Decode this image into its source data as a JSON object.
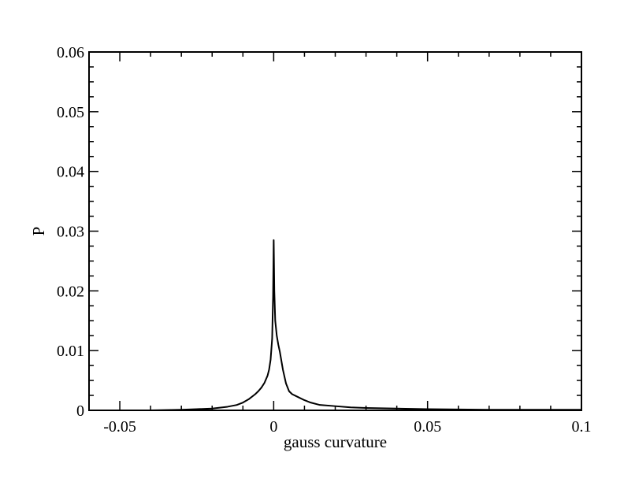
{
  "chart_data": {
    "type": "line",
    "title": "",
    "xlabel": "gauss curvature",
    "ylabel": "P",
    "xlim": [
      -0.06,
      0.1
    ],
    "ylim": [
      0,
      0.06
    ],
    "x_ticks": [
      -0.05,
      0,
      0.05,
      0.1
    ],
    "x_tick_labels": [
      "-0.05",
      "0",
      "0.05",
      "0.1"
    ],
    "y_ticks": [
      0,
      0.01,
      0.02,
      0.03,
      0.04,
      0.05,
      0.06
    ],
    "y_tick_labels": [
      "0",
      "0.01",
      "0.02",
      "0.03",
      "0.04",
      "0.05",
      "0.06"
    ],
    "grid": false,
    "legend": "none",
    "line_color": "#000000",
    "series": [
      {
        "x": [
          -0.04,
          -0.03,
          -0.025,
          -0.02,
          -0.015,
          -0.012,
          -0.01,
          -0.008,
          -0.006,
          -0.005,
          -0.004,
          -0.003,
          -0.002,
          -0.0015,
          -0.001,
          -0.0005,
          -0.0002,
          0,
          0.0002,
          0.0005,
          0.001,
          0.0015,
          0.002,
          0.003,
          0.004,
          0.005,
          0.006,
          0.008,
          0.01,
          0.012,
          0.015,
          0.02,
          0.025,
          0.03,
          0.04,
          0.05,
          0.07,
          0.1
        ],
        "y": [
          0,
          0.0001,
          0.0002,
          0.0003,
          0.0006,
          0.0009,
          0.0013,
          0.0019,
          0.0027,
          0.0032,
          0.0038,
          0.0046,
          0.0058,
          0.0068,
          0.0085,
          0.012,
          0.019,
          0.0285,
          0.02,
          0.015,
          0.0125,
          0.011,
          0.0098,
          0.0068,
          0.0045,
          0.0032,
          0.0027,
          0.0022,
          0.0017,
          0.0013,
          0.0009,
          0.0007,
          0.0005,
          0.0004,
          0.0003,
          0.0002,
          0.0001,
          0.0001
        ]
      }
    ]
  }
}
